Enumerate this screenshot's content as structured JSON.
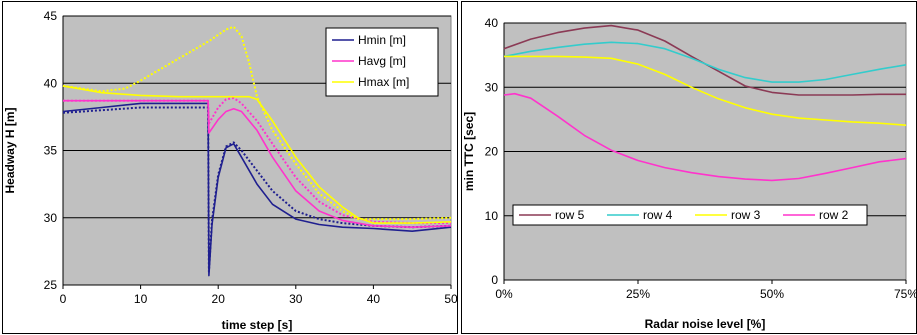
{
  "chart_data": [
    {
      "type": "line",
      "title": "",
      "xlabel": "time step [s]",
      "ylabel": "Headway H [m]",
      "xlim": [
        0,
        50
      ],
      "ylim": [
        25,
        45
      ],
      "xticks": [
        "0",
        "10",
        "20",
        "30",
        "40",
        "50"
      ],
      "yticks": [
        "25",
        "30",
        "35",
        "40",
        "45"
      ],
      "grid": "horizontal",
      "legend_position": "top-right",
      "background": "#c0c0c0",
      "legend": [
        {
          "label": "Hmin [m]",
          "color": "#1f1f8f"
        },
        {
          "label": "Havg [m]",
          "color": "#ff33cc"
        },
        {
          "label": "Hmax [m]",
          "color": "#ffff00"
        }
      ],
      "series": [
        {
          "name": "Hmin [m]",
          "style": "solid",
          "color": "#1f1f8f",
          "x": [
            0,
            5,
            10,
            15,
            18.7,
            18.8,
            19.2,
            20,
            21,
            22,
            23,
            25,
            27,
            30,
            33,
            36,
            40,
            45,
            50
          ],
          "y": [
            37.9,
            38.2,
            38.5,
            38.5,
            38.5,
            25.7,
            29.5,
            33,
            35.2,
            35.5,
            34.5,
            32.5,
            31,
            29.9,
            29.5,
            29.3,
            29.2,
            29.0,
            29.3
          ]
        },
        {
          "name": "Hmin [m]",
          "style": "dotted",
          "color": "#1f1f8f",
          "x": [
            0,
            5,
            10,
            15,
            18.7,
            18.8,
            19.2,
            20,
            21,
            22,
            23,
            25,
            27,
            30,
            33,
            36,
            40,
            45,
            50
          ],
          "y": [
            37.8,
            38.0,
            38.2,
            38.2,
            38.2,
            26.0,
            29.8,
            33.2,
            35.3,
            35.6,
            35.0,
            33.5,
            32,
            30.5,
            29.9,
            29.6,
            29.4,
            29.3,
            29.4
          ]
        },
        {
          "name": "Havg [m]",
          "style": "solid",
          "color": "#ff33cc",
          "x": [
            0,
            10,
            18.7,
            18.8,
            20,
            21,
            22,
            23,
            25,
            27,
            30,
            33,
            36,
            40,
            45,
            50
          ],
          "y": [
            38.7,
            38.7,
            38.7,
            36.3,
            37.3,
            37.9,
            38.1,
            37.9,
            36.5,
            34.5,
            32,
            30.5,
            29.8,
            29.4,
            29.3,
            29.4
          ]
        },
        {
          "name": "Havg [m]",
          "style": "dotted",
          "color": "#ff33cc",
          "x": [
            0,
            10,
            18.7,
            18.8,
            20,
            21,
            22,
            23,
            25,
            27,
            30,
            33,
            36,
            40,
            45,
            50
          ],
          "y": [
            38.7,
            38.7,
            38.7,
            37.0,
            38.2,
            38.8,
            38.9,
            38.5,
            37.2,
            35.5,
            33,
            31.2,
            30.2,
            29.7,
            29.6,
            29.6
          ]
        },
        {
          "name": "Hmax [m]",
          "style": "solid",
          "color": "#ffff00",
          "x": [
            0,
            5,
            10,
            15,
            20,
            22,
            24,
            25,
            27,
            30,
            33,
            36,
            38,
            40,
            45,
            50
          ],
          "y": [
            39.8,
            39.3,
            39.1,
            39.0,
            39.0,
            39.0,
            39.0,
            38.8,
            37.2,
            34.5,
            32.3,
            30.8,
            30.0,
            29.6,
            29.6,
            29.7
          ]
        },
        {
          "name": "Hmax [m]",
          "style": "dotted",
          "color": "#ffff00",
          "x": [
            0,
            5,
            8,
            10,
            13,
            16,
            19,
            21,
            22,
            23,
            24,
            25,
            27,
            30,
            33,
            36,
            38,
            40,
            45,
            50
          ],
          "y": [
            39.8,
            39.4,
            39.6,
            40.2,
            41.2,
            42.2,
            43.2,
            44.0,
            44.2,
            43.5,
            41.5,
            39.0,
            36.5,
            34.0,
            31.8,
            30.5,
            29.9,
            29.9,
            29.9,
            30.0
          ]
        }
      ]
    },
    {
      "type": "line",
      "title": "",
      "xlabel": "Radar noise level [%]",
      "ylabel": "min TTC [sec]",
      "xlim": [
        0,
        75
      ],
      "ylim": [
        0,
        40
      ],
      "xticks": [
        "0%",
        "25%",
        "50%",
        "75%"
      ],
      "yticks": [
        "0",
        "10",
        "20",
        "30",
        "40"
      ],
      "grid": "horizontal",
      "legend_position": "bottom-inside",
      "background": "#c0c0c0",
      "series": [
        {
          "name": "row 5",
          "color": "#8b3a55",
          "x": [
            0,
            5,
            10,
            15,
            20,
            25,
            30,
            35,
            40,
            45,
            50,
            55,
            60,
            65,
            70,
            75
          ],
          "y": [
            36.0,
            37.5,
            38.5,
            39.2,
            39.6,
            38.9,
            37.2,
            34.8,
            32.5,
            30.2,
            29.2,
            28.8,
            28.8,
            28.8,
            28.9,
            28.9
          ]
        },
        {
          "name": "row 4",
          "color": "#33cccc",
          "x": [
            0,
            5,
            10,
            15,
            20,
            25,
            30,
            35,
            40,
            45,
            50,
            55,
            60,
            65,
            70,
            75
          ],
          "y": [
            34.8,
            35.6,
            36.2,
            36.7,
            37.0,
            36.8,
            36.0,
            34.5,
            32.8,
            31.5,
            30.8,
            30.8,
            31.2,
            32.0,
            32.8,
            33.5
          ]
        },
        {
          "name": "row 3",
          "color": "#ffff00",
          "x": [
            0,
            5,
            10,
            15,
            20,
            25,
            30,
            35,
            40,
            45,
            50,
            55,
            60,
            65,
            70,
            75
          ],
          "y": [
            34.8,
            34.8,
            34.8,
            34.7,
            34.5,
            33.6,
            32.0,
            30.0,
            28.2,
            26.8,
            25.8,
            25.2,
            24.9,
            24.6,
            24.4,
            24.1
          ]
        },
        {
          "name": "row 2",
          "color": "#ff33cc",
          "x": [
            0,
            2,
            5,
            10,
            15,
            20,
            25,
            30,
            35,
            40,
            45,
            50,
            55,
            60,
            65,
            70,
            75
          ],
          "y": [
            28.8,
            29.0,
            28.3,
            25.5,
            22.5,
            20.2,
            18.6,
            17.5,
            16.7,
            16.1,
            15.7,
            15.5,
            15.8,
            16.6,
            17.5,
            18.4,
            18.9
          ]
        }
      ]
    }
  ]
}
